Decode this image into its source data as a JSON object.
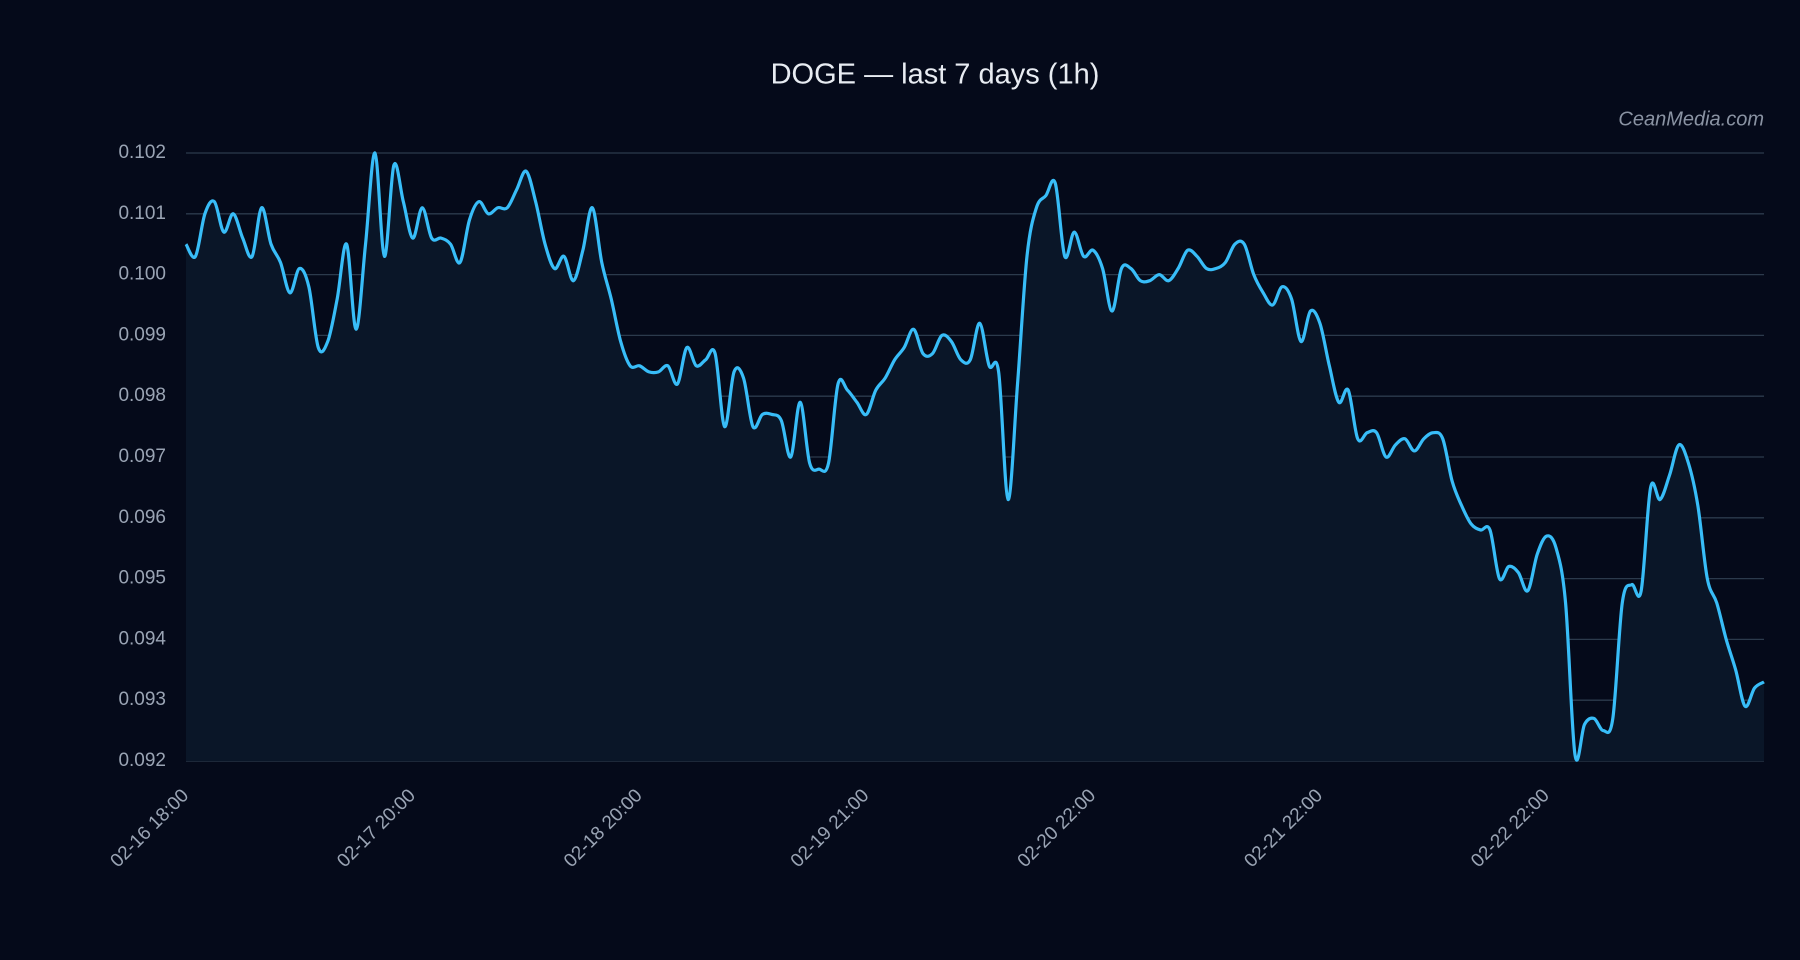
{
  "chart_data": {
    "type": "line",
    "title": "DOGE — last 7 days (1h)",
    "watermark": "CeanMedia.com",
    "categories": [
      "02-16 18:00",
      null,
      null,
      null,
      null,
      null,
      null,
      null,
      null,
      null,
      null,
      null,
      null,
      null,
      null,
      null,
      null,
      null,
      null,
      null,
      null,
      null,
      null,
      null,
      "02-17 20:00",
      null,
      null,
      null,
      null,
      null,
      null,
      null,
      null,
      null,
      null,
      null,
      null,
      null,
      null,
      null,
      null,
      null,
      null,
      null,
      null,
      null,
      null,
      null,
      "02-18 20:00",
      null,
      null,
      null,
      null,
      null,
      null,
      null,
      null,
      null,
      null,
      null,
      null,
      null,
      null,
      null,
      null,
      null,
      null,
      null,
      null,
      null,
      null,
      null,
      "02-19 21:00",
      null,
      null,
      null,
      null,
      null,
      null,
      null,
      null,
      null,
      null,
      null,
      null,
      null,
      null,
      null,
      null,
      null,
      null,
      null,
      null,
      null,
      null,
      null,
      "02-20 22:00",
      null,
      null,
      null,
      null,
      null,
      null,
      null,
      null,
      null,
      null,
      null,
      null,
      null,
      null,
      null,
      null,
      null,
      null,
      null,
      null,
      null,
      null,
      null,
      "02-21 22:00",
      null,
      null,
      null,
      null,
      null,
      null,
      null,
      null,
      null,
      null,
      null,
      null,
      null,
      null,
      null,
      null,
      null,
      null,
      null,
      null,
      null,
      null,
      null,
      "02-22 22:00",
      null,
      null,
      null,
      null,
      null,
      null,
      null,
      null,
      null,
      null,
      null,
      null,
      null,
      null,
      null,
      null,
      null,
      null,
      null,
      null,
      null,
      null,
      null
    ],
    "series": [
      {
        "name": "DOGE",
        "color": "#38bdf8",
        "values": [
          0.1005,
          0.1003,
          0.101,
          0.1012,
          0.1007,
          0.101,
          0.1006,
          0.1003,
          0.1011,
          0.1005,
          0.1002,
          0.0997,
          0.1001,
          0.0998,
          0.0988,
          0.0989,
          0.0996,
          0.1005,
          0.0991,
          0.1005,
          0.102,
          0.1003,
          0.1018,
          0.1012,
          0.1006,
          0.1011,
          0.1006,
          0.1006,
          0.1005,
          0.1002,
          0.1009,
          0.1012,
          0.101,
          0.1011,
          0.1011,
          0.1014,
          0.1017,
          0.1012,
          0.1005,
          0.1001,
          0.1003,
          0.0999,
          0.1004,
          0.1011,
          0.1002,
          0.0996,
          0.0989,
          0.0985,
          0.0985,
          0.0984,
          0.0984,
          0.0985,
          0.0982,
          0.0988,
          0.0985,
          0.0986,
          0.0987,
          0.0975,
          0.0984,
          0.0983,
          0.0975,
          0.0977,
          0.0977,
          0.0976,
          0.097,
          0.0979,
          0.0969,
          0.0968,
          0.0969,
          0.0982,
          0.0981,
          0.0979,
          0.0977,
          0.0981,
          0.0983,
          0.0986,
          0.0988,
          0.0991,
          0.0987,
          0.0987,
          0.099,
          0.0989,
          0.0986,
          0.0986,
          0.0992,
          0.0985,
          0.0984,
          0.0963,
          0.0982,
          0.1003,
          0.1011,
          0.1013,
          0.1015,
          0.1003,
          0.1007,
          0.1003,
          0.1004,
          0.1001,
          0.0994,
          0.1001,
          0.1001,
          0.0999,
          0.0999,
          0.1,
          0.0999,
          0.1001,
          0.1004,
          0.1003,
          0.1001,
          0.1001,
          0.1002,
          0.1005,
          0.1005,
          0.1,
          0.0997,
          0.0995,
          0.0998,
          0.0996,
          0.0989,
          0.0994,
          0.0992,
          0.0985,
          0.0979,
          0.0981,
          0.0973,
          0.0974,
          0.0974,
          0.097,
          0.0972,
          0.0973,
          0.0971,
          0.0973,
          0.0974,
          0.0973,
          0.0966,
          0.0962,
          0.0959,
          0.0958,
          0.0958,
          0.095,
          0.0952,
          0.0951,
          0.0948,
          0.0954,
          0.0957,
          0.0955,
          0.0946,
          0.0921,
          0.0926,
          0.0927,
          0.0925,
          0.0927,
          0.0946,
          0.0949,
          0.0948,
          0.0965,
          0.0963,
          0.0967,
          0.0972,
          0.0969,
          0.0962,
          0.095,
          0.0946,
          0.094,
          0.0935,
          0.0929,
          0.0932,
          0.0933
        ]
      }
    ],
    "ylim": [
      0.092,
      0.102
    ],
    "yticks": [
      0.092,
      0.093,
      0.094,
      0.095,
      0.096,
      0.097,
      0.098,
      0.099,
      {
        "value": 0.1,
        "label": "0.100"
      },
      0.101,
      0.102
    ],
    "grid": true,
    "fill_color": "#0a1628"
  }
}
